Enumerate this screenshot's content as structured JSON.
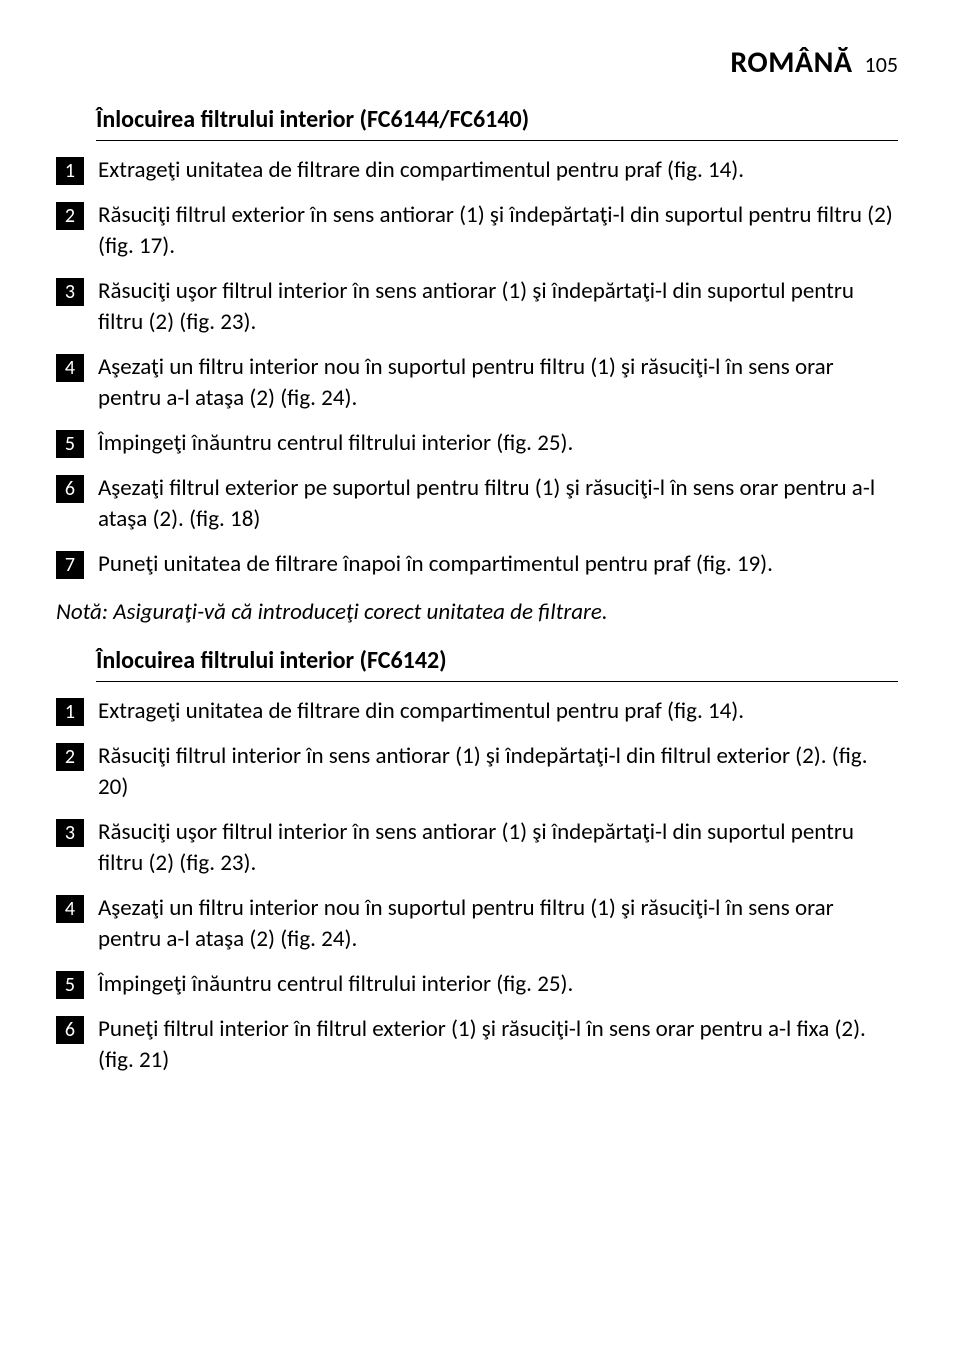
{
  "header": {
    "language": "ROMÂNĂ",
    "page_number": "105"
  },
  "section1": {
    "heading": "Înlocuirea filtrului interior (FC6144/FC6140)",
    "steps": [
      {
        "n": "1",
        "t": "Extrageţi unitatea de filtrare din compartimentul pentru praf (fig. 14)."
      },
      {
        "n": "2",
        "t": "Răsuciţi filtrul exterior în sens antiorar (1) şi îndepărtaţi-l din suportul pentru filtru (2) (fig. 17)."
      },
      {
        "n": "3",
        "t": "Răsuciţi uşor filtrul interior în sens antiorar (1) şi îndepărtaţi-l din suportul pentru filtru (2) (fig. 23)."
      },
      {
        "n": "4",
        "t": "Aşezaţi un filtru interior nou în suportul pentru filtru (1) şi răsuciţi-l în sens orar pentru a-l ataşa (2) (fig. 24)."
      },
      {
        "n": "5",
        "t": "Împingeţi înăuntru centrul filtrului interior (fig. 25)."
      },
      {
        "n": "6",
        "t": "Aşezaţi filtrul exterior pe suportul pentru filtru (1) şi răsuciţi-l în sens orar pentru a-l ataşa (2).  (fig. 18)"
      },
      {
        "n": "7",
        "t": "Puneţi unitatea de filtrare înapoi în compartimentul pentru praf (fig. 19)."
      }
    ],
    "note": "Notă: Asiguraţi-vă că introduceţi corect unitatea de filtrare."
  },
  "section2": {
    "heading": "Înlocuirea filtrului interior (FC6142)",
    "steps": [
      {
        "n": "1",
        "t": "Extrageţi unitatea de filtrare din compartimentul pentru praf (fig. 14)."
      },
      {
        "n": "2",
        "t": "Răsuciţi filtrul interior în sens antiorar (1) şi îndepărtaţi-l din filtrul exterior (2).  (fig. 20)"
      },
      {
        "n": "3",
        "t": "Răsuciţi uşor filtrul interior în sens antiorar (1) şi îndepărtaţi-l din suportul pentru filtru (2) (fig. 23)."
      },
      {
        "n": "4",
        "t": "Aşezaţi un filtru interior nou în suportul pentru filtru (1) şi răsuciţi-l în sens orar pentru a-l ataşa (2) (fig. 24)."
      },
      {
        "n": "5",
        "t": "Împingeţi înăuntru centrul filtrului interior (fig. 25)."
      },
      {
        "n": "6",
        "t": "Puneţi filtrul interior în filtrul exterior (1) şi răsuciţi-l în sens orar pentru a-l fixa (2).  (fig. 21)"
      }
    ]
  }
}
